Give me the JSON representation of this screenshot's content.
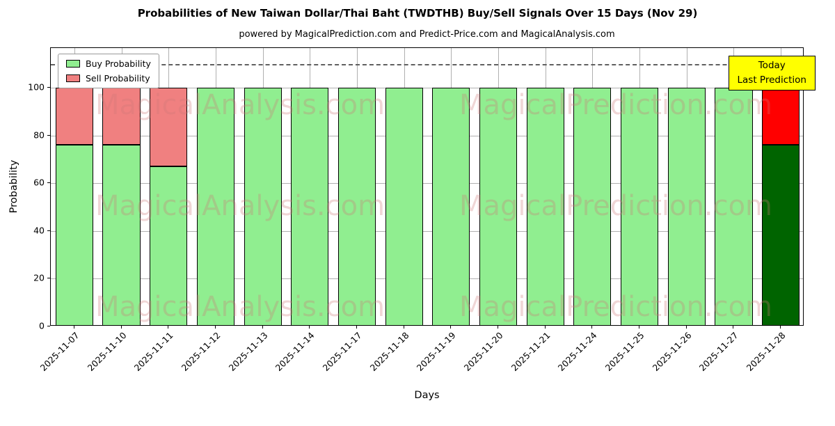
{
  "title": "Probabilities of New Taiwan Dollar/Thai Baht (TWDTHB) Buy/Sell Signals Over 15 Days (Nov 29)",
  "subtitle": "powered by MagicalPrediction.com and Predict-Price.com and MagicalAnalysis.com",
  "axes": {
    "xlabel": "Days",
    "ylabel": "Probability",
    "yticks": [
      0,
      20,
      40,
      60,
      80,
      100
    ],
    "ylim": [
      0,
      116.6
    ],
    "dashed_hline": 110
  },
  "legend": {
    "items": [
      {
        "label": "Buy Probability",
        "color": "#90ee90"
      },
      {
        "label": "Sell Probability",
        "color": "#f08080"
      }
    ]
  },
  "annotation_box": {
    "line1": "Today",
    "line2": "Last Prediction",
    "bg_color": "#ffff00"
  },
  "watermarks": {
    "texts": [
      "MagicalAnalysis.com",
      "MagicalPrediction.com"
    ]
  },
  "chart_data": {
    "type": "bar",
    "stacked": true,
    "title": "Probabilities of New Taiwan Dollar/Thai Baht (TWDTHB) Buy/Sell Signals Over 15 Days (Nov 29)",
    "xlabel": "Days",
    "ylabel": "Probability",
    "ylim": [
      0,
      116.6
    ],
    "grid": true,
    "legend_position": "upper left",
    "bar_edge_color": "#000000",
    "categories": [
      "2025-11-07",
      "2025-11-10",
      "2025-11-11",
      "2025-11-12",
      "2025-11-13",
      "2025-11-14",
      "2025-11-17",
      "2025-11-18",
      "2025-11-19",
      "2025-11-20",
      "2025-11-21",
      "2025-11-24",
      "2025-11-25",
      "2025-11-26",
      "2025-11-27",
      "2025-11-28"
    ],
    "series": [
      {
        "name": "Buy Probability",
        "values": [
          76,
          76,
          67,
          100,
          100,
          100,
          100,
          100,
          100,
          100,
          100,
          100,
          100,
          100,
          100,
          76
        ],
        "colors": [
          "#90ee90",
          "#90ee90",
          "#90ee90",
          "#90ee90",
          "#90ee90",
          "#90ee90",
          "#90ee90",
          "#90ee90",
          "#90ee90",
          "#90ee90",
          "#90ee90",
          "#90ee90",
          "#90ee90",
          "#90ee90",
          "#90ee90",
          "#006400"
        ]
      },
      {
        "name": "Sell Probability",
        "values": [
          24,
          24,
          33,
          0,
          0,
          0,
          0,
          0,
          0,
          0,
          0,
          0,
          0,
          0,
          0,
          24
        ],
        "colors": [
          "#f08080",
          "#f08080",
          "#f08080",
          "#f08080",
          "#f08080",
          "#f08080",
          "#f08080",
          "#f08080",
          "#f08080",
          "#f08080",
          "#f08080",
          "#f08080",
          "#f08080",
          "#f08080",
          "#f08080",
          "#ff0000"
        ]
      }
    ]
  }
}
